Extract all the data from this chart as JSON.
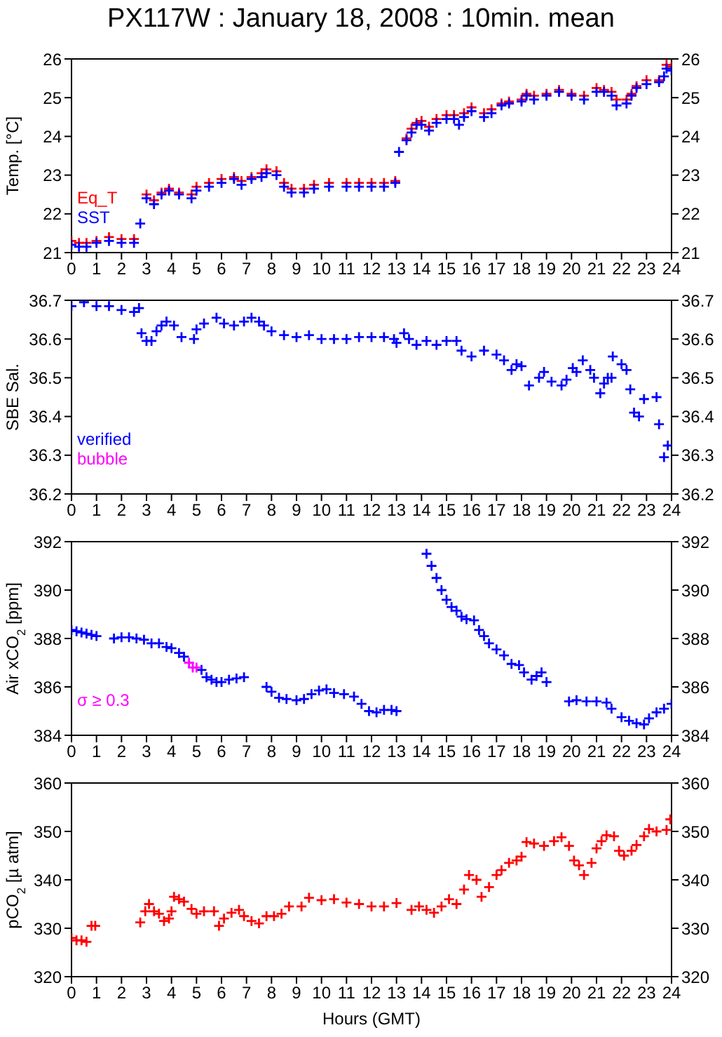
{
  "chart_data": [
    {
      "type": "scatter",
      "title": "PX117W : January 18, 2008 : 10min. mean",
      "ylabel": "Temp. [°C]",
      "xlim": [
        0,
        24
      ],
      "xticks": [
        0,
        1,
        2,
        3,
        4,
        5,
        6,
        7,
        8,
        9,
        10,
        11,
        12,
        13,
        14,
        15,
        16,
        17,
        18,
        19,
        20,
        21,
        22,
        23,
        24
      ],
      "ylim": [
        21,
        26
      ],
      "yticks": [
        21,
        22,
        23,
        24,
        25,
        26
      ],
      "y2lim": [
        21,
        26
      ],
      "y2ticks": [
        21,
        22,
        23,
        24,
        25,
        26
      ],
      "marker": "cross",
      "legend": "bottom left",
      "grid": false,
      "series": [
        {
          "name": "Eq_T",
          "color": "#ff0000",
          "x": [
            0,
            0.3,
            0.6,
            1,
            1.5,
            2,
            2.5,
            3,
            3.3,
            3.6,
            3.9,
            4.3,
            4.8,
            5,
            5.5,
            6,
            6.5,
            6.8,
            7.2,
            7.6,
            7.8,
            8.2,
            8.5,
            8.8,
            9.3,
            9.7,
            10.3,
            11,
            11.5,
            12,
            12.5,
            12.95,
            13.4,
            13.6,
            13.8,
            14,
            14.3,
            14.6,
            15,
            15.3,
            15.7,
            16,
            16.5,
            16.8,
            17.2,
            17.5,
            18,
            18.2,
            18.5,
            19,
            19.5,
            20,
            20.5,
            21,
            21.3,
            21.6,
            21.8,
            22.2,
            22.4,
            22.6,
            23,
            23.5,
            23.8,
            24
          ],
          "values": [
            21.3,
            21.25,
            21.25,
            21.3,
            21.4,
            21.35,
            21.35,
            22.5,
            22.35,
            22.55,
            22.65,
            22.55,
            22.5,
            22.7,
            22.8,
            22.9,
            22.95,
            22.85,
            22.95,
            23.05,
            23.15,
            23.1,
            22.8,
            22.65,
            22.65,
            22.75,
            22.8,
            22.8,
            22.8,
            22.8,
            22.8,
            22.85,
            23.95,
            24.2,
            24.35,
            24.4,
            24.25,
            24.45,
            24.55,
            24.55,
            24.6,
            24.75,
            24.6,
            24.7,
            24.85,
            24.9,
            24.95,
            25.1,
            25.05,
            25.1,
            25.2,
            25.1,
            25.05,
            25.25,
            25.2,
            25.15,
            24.95,
            24.95,
            25.1,
            25.3,
            25.45,
            25.45,
            25.85,
            25.8
          ]
        },
        {
          "name": "SST",
          "color": "#0000ff",
          "x": [
            0,
            0.3,
            0.6,
            1,
            1.5,
            2,
            2.5,
            2.75,
            3,
            3.3,
            3.6,
            3.9,
            4.3,
            4.8,
            5,
            5.5,
            6,
            6.5,
            6.8,
            7.2,
            7.6,
            7.8,
            8.2,
            8.5,
            8.8,
            9.3,
            9.7,
            10.3,
            11,
            11.5,
            12,
            12.5,
            12.95,
            13.1,
            13.4,
            13.6,
            13.8,
            14,
            14.3,
            14.6,
            15,
            15.3,
            15.5,
            15.7,
            16,
            16.5,
            16.8,
            17.2,
            17.5,
            18,
            18.2,
            18.5,
            19,
            19.5,
            20,
            20.5,
            21,
            21.3,
            21.6,
            21.8,
            22.2,
            22.4,
            22.6,
            23,
            23.5,
            23.7,
            23.8,
            24
          ],
          "values": [
            21.2,
            21.15,
            21.15,
            21.25,
            21.3,
            21.25,
            21.25,
            21.75,
            22.4,
            22.25,
            22.5,
            22.6,
            22.5,
            22.4,
            22.6,
            22.7,
            22.8,
            22.9,
            22.75,
            22.9,
            22.95,
            23.05,
            23,
            22.7,
            22.55,
            22.55,
            22.65,
            22.7,
            22.7,
            22.7,
            22.7,
            22.7,
            22.8,
            23.6,
            23.9,
            24.1,
            24.3,
            24.3,
            24.15,
            24.35,
            24.45,
            24.45,
            24.3,
            24.5,
            24.65,
            24.5,
            24.6,
            24.8,
            24.85,
            24.9,
            25.05,
            24.95,
            25.05,
            25.15,
            25.05,
            24.95,
            25.15,
            25.15,
            25.05,
            24.8,
            24.85,
            25.05,
            25.25,
            25.35,
            25.4,
            25.55,
            25.75,
            25.7
          ]
        }
      ]
    },
    {
      "type": "scatter",
      "ylabel": "SBE Sal.",
      "xlim": [
        0,
        24
      ],
      "xticks": [
        0,
        1,
        2,
        3,
        4,
        5,
        6,
        7,
        8,
        9,
        10,
        11,
        12,
        13,
        14,
        15,
        16,
        17,
        18,
        19,
        20,
        21,
        22,
        23,
        24
      ],
      "ylim": [
        36.2,
        36.7
      ],
      "yticks": [
        36.2,
        36.3,
        36.4,
        36.5,
        36.6,
        36.7
      ],
      "y2lim": [
        36.2,
        36.7
      ],
      "y2ticks": [
        36.2,
        36.3,
        36.4,
        36.5,
        36.6,
        36.7
      ],
      "marker": "cross",
      "legend": "bottom left",
      "grid": false,
      "series": [
        {
          "name": "verified",
          "color": "#0000ff",
          "x": [
            0,
            0.5,
            1,
            1.5,
            2,
            2.5,
            2.7,
            2.8,
            3,
            3.2,
            3.4,
            3.6,
            3.8,
            4.1,
            4.4,
            4.9,
            5,
            5.3,
            5.8,
            6.1,
            6.5,
            6.9,
            7.2,
            7.5,
            7.7,
            8,
            8.5,
            9,
            9.5,
            10,
            10.5,
            11,
            11.5,
            12,
            12.5,
            12.9,
            13,
            13.3,
            13.5,
            13.8,
            14.2,
            14.6,
            15,
            15.4,
            15.6,
            16,
            16.5,
            17,
            17.3,
            17.6,
            17.8,
            18,
            18.3,
            18.7,
            18.9,
            19.2,
            19.6,
            19.8,
            20.05,
            20.2,
            20.45,
            20.75,
            20.9,
            21.15,
            21.3,
            21.45,
            21.6,
            21.65,
            22,
            22.2,
            22.35,
            22.5,
            22.7,
            22.9,
            23.4,
            23.5,
            23.7,
            23.85
          ],
          "values": [
            36.685,
            36.695,
            36.685,
            36.685,
            36.675,
            36.67,
            36.68,
            36.615,
            36.595,
            36.595,
            36.62,
            36.635,
            36.645,
            36.635,
            36.605,
            36.6,
            36.625,
            36.64,
            36.655,
            36.64,
            36.635,
            36.645,
            36.655,
            36.645,
            36.635,
            36.62,
            36.61,
            36.605,
            36.61,
            36.6,
            36.6,
            36.6,
            36.605,
            36.605,
            36.605,
            36.6,
            36.59,
            36.615,
            36.6,
            36.585,
            36.595,
            36.585,
            36.595,
            36.595,
            36.57,
            36.555,
            36.57,
            36.56,
            36.545,
            36.52,
            36.535,
            36.53,
            36.48,
            36.5,
            36.515,
            36.49,
            36.48,
            36.495,
            36.525,
            36.515,
            36.545,
            36.52,
            36.5,
            36.46,
            36.485,
            36.5,
            36.5,
            36.555,
            36.535,
            36.52,
            36.47,
            36.41,
            36.4,
            36.445,
            36.45,
            36.38,
            36.295,
            36.325
          ]
        },
        {
          "name": "bubble",
          "color": "#ff00ff"
        }
      ]
    },
    {
      "type": "scatter",
      "ylabel": "Air xCO$_{2}$ [ppm]",
      "xlim": [
        0,
        24
      ],
      "xticks": [
        0,
        1,
        2,
        3,
        4,
        5,
        6,
        7,
        8,
        9,
        10,
        11,
        12,
        13,
        14,
        15,
        16,
        17,
        18,
        19,
        20,
        21,
        22,
        23,
        24
      ],
      "ylim": [
        384,
        392
      ],
      "yticks": [
        384,
        386,
        388,
        390,
        392
      ],
      "y2lim": [
        384,
        392
      ],
      "y2ticks": [
        384,
        386,
        388,
        390,
        392
      ],
      "marker": "cross",
      "legend": "bottom left",
      "grid": false,
      "series": [
        {
          "color": "#0000ff",
          "x": [
            0,
            0.2,
            0.4,
            0.6,
            0.8,
            1,
            1.7,
            2,
            2.3,
            2.6,
            2.9,
            3.2,
            3.5,
            3.8,
            4,
            4.3,
            4.5,
            5.2,
            5.4,
            5.6,
            5.8,
            6,
            6.3,
            6.6,
            6.9,
            7.8,
            8,
            8.3,
            8.6,
            9,
            9.3,
            9.6,
            9.9,
            10.2,
            10.5,
            10.9,
            11.3,
            11.6,
            11.9,
            12.2,
            12.5,
            12.8,
            13,
            14.2,
            14.4,
            14.6,
            14.8,
            15,
            15.2,
            15.4,
            15.6,
            15.8,
            16.1,
            16.3,
            16.5,
            16.7,
            17,
            17.3,
            17.6,
            17.9,
            18.1,
            18.4,
            18.6,
            18.8,
            19,
            19.9,
            20.2,
            20.6,
            21,
            21.4,
            21.6,
            22,
            22.3,
            22.6,
            22.9,
            23.1,
            23.4,
            23.7,
            24
          ],
          "values": [
            388.35,
            388.3,
            388.25,
            388.2,
            388.15,
            388.1,
            388,
            388.05,
            388.05,
            388,
            387.95,
            387.8,
            387.8,
            387.65,
            387.6,
            387.4,
            387.25,
            386.7,
            386.4,
            386.3,
            386.2,
            386.2,
            386.3,
            386.35,
            386.4,
            386,
            385.8,
            385.55,
            385.5,
            385.45,
            385.5,
            385.7,
            385.85,
            385.9,
            385.75,
            385.7,
            385.6,
            385.3,
            385,
            384.95,
            385.05,
            385.05,
            385,
            391.5,
            391,
            390.5,
            390,
            389.6,
            389.3,
            389.15,
            388.9,
            388.8,
            388.75,
            388.35,
            388.1,
            387.8,
            387.55,
            387.3,
            386.95,
            386.9,
            386.6,
            386.3,
            386.45,
            386.6,
            386.2,
            385.4,
            385.45,
            385.4,
            385.4,
            385.35,
            385.1,
            384.75,
            384.6,
            384.5,
            384.45,
            384.7,
            384.95,
            385.1,
            385.3
          ]
        },
        {
          "name": "σ ≥ 0.3",
          "color": "#ff00ff",
          "x": [
            4.7,
            4.85,
            5
          ],
          "values": [
            387,
            386.8,
            386.8
          ]
        }
      ]
    },
    {
      "type": "scatter",
      "ylabel": "pCO$_{2}$ [µ atm]",
      "xlabel": "Hours (GMT)",
      "xlim": [
        0,
        24
      ],
      "xticks": [
        0,
        1,
        2,
        3,
        4,
        5,
        6,
        7,
        8,
        9,
        10,
        11,
        12,
        13,
        14,
        15,
        16,
        17,
        18,
        19,
        20,
        21,
        22,
        23,
        24
      ],
      "ylim": [
        320,
        360
      ],
      "yticks": [
        320,
        330,
        340,
        350,
        360
      ],
      "y2lim": [
        320,
        360
      ],
      "y2ticks": [
        320,
        330,
        340,
        350,
        360
      ],
      "marker": "cross",
      "legend": false,
      "grid": false,
      "series": [
        {
          "color": "#ff0000",
          "x": [
            0,
            0.2,
            0.4,
            0.6,
            0.8,
            0.95,
            2.75,
            2.95,
            3.1,
            3.3,
            3.5,
            3.7,
            3.9,
            4,
            4.1,
            4.3,
            4.5,
            4.8,
            5,
            5.3,
            5.7,
            5.9,
            6.1,
            6.4,
            6.7,
            6.9,
            7.2,
            7.5,
            7.8,
            8.1,
            8.4,
            8.7,
            9.2,
            9.5,
            10,
            10.5,
            11,
            11.5,
            12,
            12.5,
            13,
            13.6,
            13.9,
            14.2,
            14.5,
            14.8,
            15.1,
            15.4,
            15.7,
            15.9,
            16.2,
            16.4,
            16.7,
            17,
            17.2,
            17.5,
            17.8,
            18,
            18.2,
            18.5,
            18.9,
            19.3,
            19.6,
            19.9,
            20.1,
            20.3,
            20.5,
            20.8,
            21,
            21.2,
            21.4,
            21.7,
            21.9,
            22.1,
            22.4,
            22.6,
            22.9,
            23.1,
            23.4,
            23.8,
            23.95
          ],
          "values": [
            328,
            327.5,
            327.5,
            327.2,
            330.5,
            330.5,
            331.2,
            333.5,
            335,
            333.5,
            333,
            331.5,
            332,
            333.5,
            336.5,
            336,
            335.5,
            334,
            333,
            333.5,
            333.5,
            330.5,
            332,
            333.2,
            333.8,
            332.5,
            331.5,
            331,
            332.5,
            332.5,
            333,
            334.5,
            334.5,
            336.3,
            335.8,
            336,
            335.3,
            335,
            334.5,
            334.5,
            335.2,
            333.8,
            334.5,
            333.8,
            333.2,
            334.5,
            336,
            335,
            338,
            341,
            340,
            336.5,
            338.5,
            341,
            342,
            343.5,
            344,
            344.8,
            347.8,
            347.5,
            347,
            348,
            348.8,
            347,
            344,
            343,
            341,
            343.5,
            346.5,
            348,
            349.2,
            349,
            346,
            345,
            346,
            347.2,
            349,
            350.5,
            350,
            350.3,
            352.5
          ]
        }
      ]
    }
  ]
}
